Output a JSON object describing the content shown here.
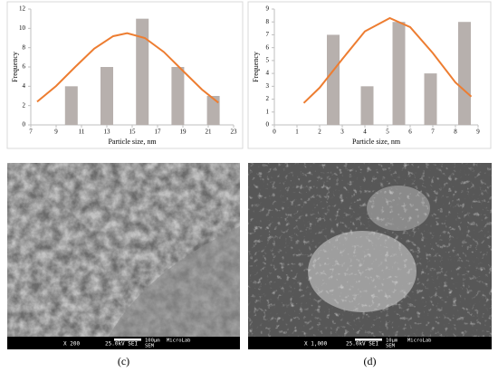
{
  "chart_data": [
    {
      "type": "bar",
      "x_label": "Particle size, nm",
      "y_label": "Frequency",
      "xlim": [
        7,
        23
      ],
      "xticks": [
        7,
        9,
        11,
        13,
        15,
        17,
        19,
        21,
        23
      ],
      "ylim": [
        0,
        12
      ],
      "yticks": [
        0,
        2,
        4,
        6,
        8,
        10,
        12
      ],
      "bar_width": 1,
      "series": [
        {
          "type": "bar",
          "color": "#b7b0ad",
          "x": [
            10.2,
            13,
            15.8,
            18.6,
            21.4
          ],
          "values": [
            4,
            6,
            11,
            6,
            3
          ]
        },
        {
          "type": "line",
          "color": "#ed7d31",
          "x": [
            7.5,
            9,
            10.5,
            12,
            13.5,
            14.6,
            16,
            17.5,
            19,
            20.5,
            21.8
          ],
          "values": [
            2.4,
            4.03,
            6.0,
            7.9,
            9.19,
            9.5,
            9.0,
            7.55,
            5.6,
            3.67,
            2.3
          ]
        }
      ]
    },
    {
      "type": "bar",
      "x_label": "Particle size, nm",
      "y_label": "Frequency",
      "xlim": [
        0,
        9
      ],
      "xticks": [
        0,
        1,
        2,
        3,
        4,
        5,
        6,
        7,
        8,
        9
      ],
      "ylim": [
        0,
        9
      ],
      "yticks": [
        0,
        1,
        2,
        3,
        4,
        5,
        6,
        7,
        8,
        9
      ],
      "bar_width": 0.56,
      "series": [
        {
          "type": "bar",
          "color": "#b7b0ad",
          "x": [
            2.6,
            4.1,
            5.5,
            6.9,
            8.4
          ],
          "values": [
            7,
            3,
            8,
            4,
            8
          ]
        },
        {
          "type": "line",
          "color": "#ed7d31",
          "x": [
            1.3,
            2,
            3,
            4,
            5.1,
            6,
            7,
            8,
            8.7
          ],
          "values": [
            1.7,
            2.89,
            5.11,
            7.27,
            8.3,
            7.6,
            5.58,
            3.3,
            2.2
          ]
        }
      ]
    }
  ],
  "images": [
    {
      "caption": "(c)",
      "mag": "X 200",
      "kv": "25.0kV SEI",
      "scale": "100µm",
      "lab": "MicroLab",
      "mode": "SEM"
    },
    {
      "caption": "(d)",
      "mag": "X 1,000",
      "kv": "25.0kV SEI",
      "scale": "10µm",
      "lab": "MicroLab",
      "mode": "SEM"
    }
  ]
}
